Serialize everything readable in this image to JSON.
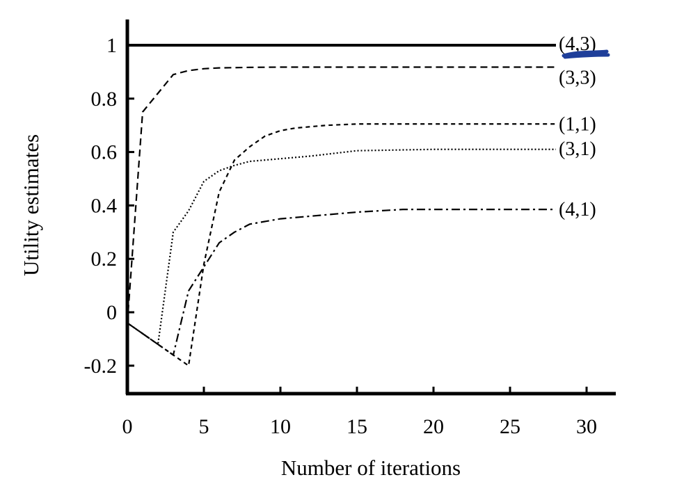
{
  "chart_data": {
    "type": "line",
    "title": "",
    "xlabel": "Number of iterations",
    "ylabel": "Utility estimates",
    "xlim": [
      0,
      32
    ],
    "ylim": [
      -0.3,
      1.1
    ],
    "xticks": [
      0,
      5,
      10,
      15,
      20,
      25,
      30
    ],
    "xtick_labels": [
      "0",
      "5",
      "10",
      "15",
      "20",
      "25",
      "30"
    ],
    "yticks": [
      -0.2,
      0,
      0.2,
      0.4,
      0.6,
      0.8,
      1
    ],
    "ytick_labels": [
      "-0.2",
      "0",
      "0.2",
      "0.4",
      "0.6",
      "0.8",
      "1"
    ],
    "grid": false,
    "legend": "none (series labeled at right end of lines)",
    "series": [
      {
        "name": "(4,3)",
        "style": "solid",
        "x": [
          0,
          28
        ],
        "y": [
          1.0,
          1.0
        ]
      },
      {
        "name": "(3,3)",
        "style": "dashed",
        "x": [
          0,
          1,
          2,
          3,
          4,
          5,
          6,
          8,
          10,
          15,
          20,
          28
        ],
        "y": [
          -0.04,
          0.75,
          0.82,
          0.89,
          0.905,
          0.912,
          0.915,
          0.917,
          0.918,
          0.918,
          0.918,
          0.918
        ]
      },
      {
        "name": "(1,1)",
        "style": "dotted-dashed",
        "x": [
          0,
          4,
          5,
          6,
          7,
          8,
          9,
          10,
          11,
          13,
          15,
          20,
          28
        ],
        "y": [
          -0.04,
          -0.2,
          0.18,
          0.45,
          0.57,
          0.62,
          0.66,
          0.68,
          0.69,
          0.7,
          0.705,
          0.705,
          0.705
        ]
      },
      {
        "name": "(3,1)",
        "style": "dotted",
        "x": [
          0,
          2,
          3,
          4,
          5,
          6,
          7,
          8,
          10,
          12,
          15,
          20,
          28
        ],
        "y": [
          -0.04,
          -0.12,
          0.3,
          0.38,
          0.49,
          0.53,
          0.55,
          0.565,
          0.575,
          0.585,
          0.605,
          0.61,
          0.61
        ]
      },
      {
        "name": "(4,1)",
        "style": "dash-dot",
        "x": [
          0,
          3,
          4,
          5,
          6,
          7,
          8,
          10,
          12,
          15,
          18,
          20,
          28
        ],
        "y": [
          -0.04,
          -0.16,
          0.08,
          0.17,
          0.26,
          0.3,
          0.33,
          0.35,
          0.36,
          0.375,
          0.385,
          0.385,
          0.385
        ]
      }
    ]
  },
  "colors": {
    "axis": "#000000",
    "line": "#000000",
    "annotation_scribble": "#1f3f9a"
  }
}
